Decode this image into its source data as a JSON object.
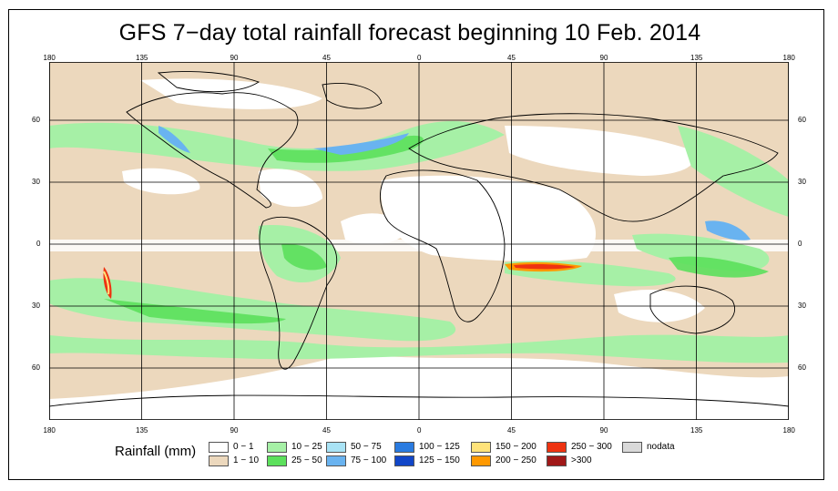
{
  "title": "GFS 7−day total rainfall forecast beginning 10 Feb. 2014",
  "lon_ticks": [
    "180",
    "135",
    "90",
    "45",
    "0",
    "45",
    "90",
    "135",
    "180"
  ],
  "lat_ticks": [
    "60",
    "30",
    "0",
    "30",
    "60"
  ],
  "legend": {
    "title": "Rainfall (mm)",
    "items": [
      {
        "label": "0 − 1",
        "color": "#ffffff"
      },
      {
        "label": "1 − 10",
        "color": "#ecd8bd"
      },
      {
        "label": "10 − 25",
        "color": "#a6f0a6"
      },
      {
        "label": "25 − 50",
        "color": "#5ce05c"
      },
      {
        "label": "50 − 75",
        "color": "#a9e3f5"
      },
      {
        "label": "75 − 100",
        "color": "#69b3f0"
      },
      {
        "label": "100 − 125",
        "color": "#2a7be0"
      },
      {
        "label": "125 − 150",
        "color": "#1146c8"
      },
      {
        "label": "150 − 200",
        "color": "#ffe37a"
      },
      {
        "label": "200 − 250",
        "color": "#ff9900"
      },
      {
        "label": "250 − 300",
        "color": "#ee3311"
      },
      {
        "label": ">300",
        "color": "#a01818"
      },
      {
        "label": "nodata",
        "color": "#d9d9d9"
      }
    ]
  }
}
